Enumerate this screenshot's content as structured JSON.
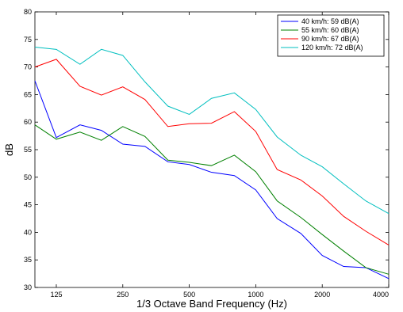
{
  "chart_data": {
    "type": "line",
    "xlabel": "1/3 Octave Band Frequency (Hz)",
    "ylabel": "dB",
    "x_scale": "log",
    "xlim": [
      100,
      4000
    ],
    "ylim": [
      30,
      80
    ],
    "x": [
      100,
      125,
      160,
      200,
      250,
      315,
      400,
      500,
      630,
      800,
      1000,
      1250,
      1600,
      2000,
      2500,
      3150,
      4000
    ],
    "x_ticks": [
      125,
      250,
      500,
      1000,
      2000,
      4000
    ],
    "x_tick_labels": [
      "125",
      "250",
      "500",
      "1000",
      "2000",
      "4000"
    ],
    "y_ticks": [
      30,
      35,
      40,
      45,
      50,
      55,
      60,
      65,
      70,
      75,
      80
    ],
    "y_tick_labels": [
      "30",
      "35",
      "40",
      "45",
      "50",
      "55",
      "60",
      "65",
      "70",
      "75",
      "80"
    ],
    "grid": false,
    "legend_position": "top-right",
    "series": [
      {
        "name": "40 km/h: 59 dB(A)",
        "color": "#0000ff",
        "values": [
          67.5,
          57.2,
          59.5,
          58.5,
          56.0,
          55.6,
          52.8,
          52.3,
          50.9,
          50.3,
          47.7,
          42.5,
          39.8,
          35.8,
          33.8,
          33.6,
          31.6
        ]
      },
      {
        "name": "55 km/h: 60 dB(A)",
        "color": "#008000",
        "values": [
          59.5,
          56.9,
          58.2,
          56.7,
          59.2,
          57.4,
          53.1,
          52.7,
          52.1,
          54.0,
          51.0,
          45.7,
          42.7,
          39.6,
          36.6,
          33.6,
          32.4
        ]
      },
      {
        "name": "90 km/h: 67 dB(A)",
        "color": "#ff0000",
        "values": [
          70.0,
          71.4,
          66.5,
          64.9,
          66.4,
          64.1,
          59.2,
          59.7,
          59.8,
          61.9,
          58.3,
          51.4,
          49.5,
          46.6,
          42.9,
          40.2,
          37.7
        ]
      },
      {
        "name": "120 km/h: 72 dB(A)",
        "color": "#00bfbf",
        "values": [
          73.6,
          73.2,
          70.5,
          73.2,
          72.1,
          67.3,
          62.9,
          61.4,
          64.3,
          65.3,
          62.3,
          57.3,
          54.0,
          51.9,
          48.8,
          45.7,
          43.4
        ]
      }
    ]
  }
}
